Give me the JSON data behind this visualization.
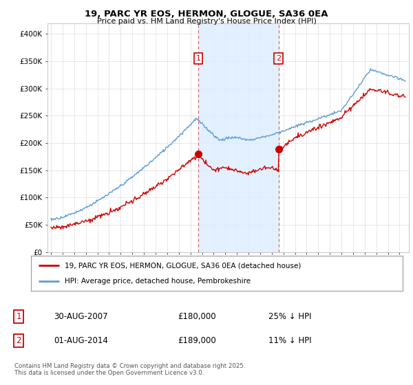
{
  "title": "19, PARC YR EOS, HERMON, GLOGUE, SA36 0EA",
  "subtitle": "Price paid vs. HM Land Registry's House Price Index (HPI)",
  "ylim": [
    0,
    420000
  ],
  "yticks": [
    0,
    50000,
    100000,
    150000,
    200000,
    250000,
    300000,
    350000,
    400000
  ],
  "ytick_labels": [
    "£0",
    "£50K",
    "£100K",
    "£150K",
    "£200K",
    "£250K",
    "£300K",
    "£350K",
    "£400K"
  ],
  "hpi_color": "#5b9bd5",
  "price_color": "#cc0000",
  "sale1_date_x": 2007.67,
  "sale1_price": 180000,
  "sale1_label": "1",
  "sale2_date_x": 2014.59,
  "sale2_price": 189000,
  "sale2_label": "2",
  "shading_color": "#ddeeff",
  "vline_color": "#e06060",
  "legend_price_label": "19, PARC YR EOS, HERMON, GLOGUE, SA36 0EA (detached house)",
  "legend_hpi_label": "HPI: Average price, detached house, Pembrokeshire",
  "table_row1": [
    "1",
    "30-AUG-2007",
    "£180,000",
    "25% ↓ HPI"
  ],
  "table_row2": [
    "2",
    "01-AUG-2014",
    "£189,000",
    "11% ↓ HPI"
  ],
  "footer": "Contains HM Land Registry data © Crown copyright and database right 2025.\nThis data is licensed under the Open Government Licence v3.0.",
  "background_color": "#ffffff",
  "grid_color": "#dddddd",
  "xlim_left": 1994.7,
  "xlim_right": 2025.8
}
